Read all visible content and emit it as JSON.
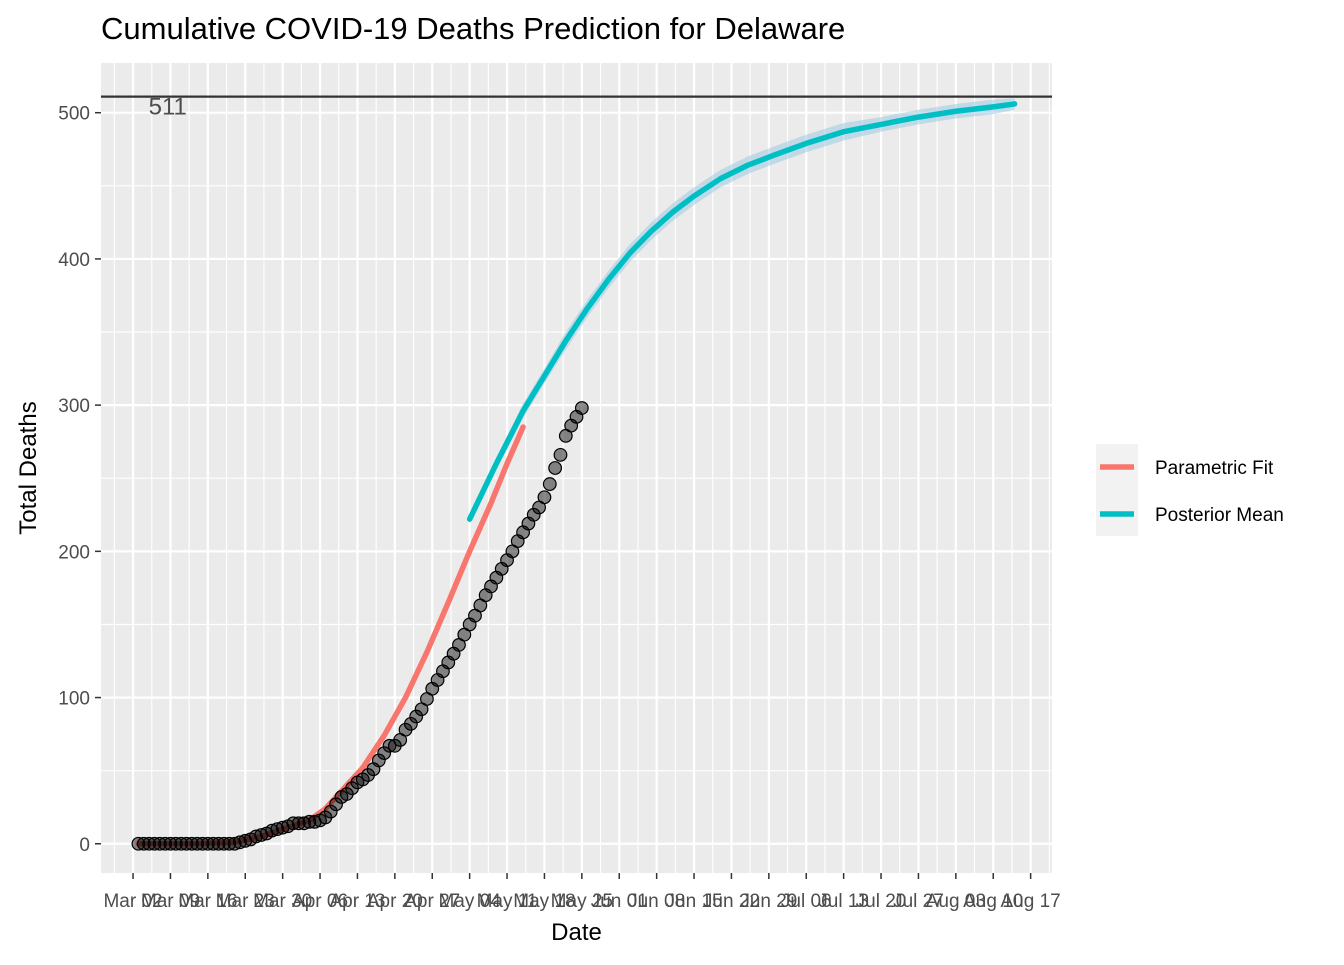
{
  "chart_data": {
    "type": "line",
    "title": "Cumulative COVID-19 Deaths Prediction for Delaware",
    "xlabel": "Date",
    "ylabel": "Total Deaths",
    "y_ticks": [
      0,
      100,
      200,
      300,
      400,
      500
    ],
    "ylim": [
      -20,
      534
    ],
    "xlim": [
      "2020-02-25",
      "2020-08-21"
    ],
    "x_ticks": [
      {
        "date": "2020-03-02",
        "label": "Mar 02"
      },
      {
        "date": "2020-03-09",
        "label": "Mar 09"
      },
      {
        "date": "2020-03-16",
        "label": "Mar 16"
      },
      {
        "date": "2020-03-23",
        "label": "Mar 23"
      },
      {
        "date": "2020-03-30",
        "label": "Mar 30"
      },
      {
        "date": "2020-04-06",
        "label": "Apr 06"
      },
      {
        "date": "2020-04-13",
        "label": "Apr 13"
      },
      {
        "date": "2020-04-20",
        "label": "Apr 20"
      },
      {
        "date": "2020-04-27",
        "label": "Apr 27"
      },
      {
        "date": "2020-05-04",
        "label": "May 04"
      },
      {
        "date": "2020-05-11",
        "label": "May 11"
      },
      {
        "date": "2020-05-18",
        "label": "May 18"
      },
      {
        "date": "2020-05-25",
        "label": "May 25"
      },
      {
        "date": "2020-06-01",
        "label": "Jun 01"
      },
      {
        "date": "2020-06-08",
        "label": "Jun 08"
      },
      {
        "date": "2020-06-15",
        "label": "Jun 15"
      },
      {
        "date": "2020-06-22",
        "label": "Jun 22"
      },
      {
        "date": "2020-06-29",
        "label": "Jun 29"
      },
      {
        "date": "2020-07-06",
        "label": "Jul 06"
      },
      {
        "date": "2020-07-13",
        "label": "Jul 13"
      },
      {
        "date": "2020-07-20",
        "label": "Jul 20"
      },
      {
        "date": "2020-07-27",
        "label": "Jul 27"
      },
      {
        "date": "2020-08-03",
        "label": "Aug 03"
      },
      {
        "date": "2020-08-10",
        "label": "Aug 10"
      },
      {
        "date": "2020-08-17",
        "label": "Aug 17"
      }
    ],
    "reference_line": {
      "value": 511,
      "label": "511",
      "color": "#333333"
    },
    "legend": {
      "position": "right",
      "entries": [
        {
          "name": "Parametric Fit",
          "color": "#F8766D"
        },
        {
          "name": "Posterior Mean",
          "color": "#00BFC4"
        }
      ]
    },
    "grid": true,
    "observed_points": {
      "start": "2020-03-03",
      "values": [
        0,
        0,
        0,
        0,
        0,
        0,
        0,
        0,
        0,
        0,
        0,
        0,
        0,
        0,
        0,
        0,
        0,
        0,
        0,
        1,
        2,
        3,
        5,
        6,
        7,
        9,
        10,
        11,
        12,
        14,
        14,
        14,
        15,
        15,
        16,
        18,
        22,
        27,
        32,
        34,
        38,
        42,
        44,
        47,
        51,
        57,
        62,
        67,
        67,
        71,
        78,
        82,
        87,
        92,
        99,
        106,
        112,
        118,
        124,
        130,
        136,
        143,
        150,
        156,
        163,
        170,
        176,
        182,
        188,
        194,
        200,
        207,
        213,
        219,
        225,
        230,
        237,
        246,
        257,
        266,
        279,
        286,
        292,
        298
      ]
    },
    "series": [
      {
        "name": "Parametric Fit",
        "color": "#F8766D",
        "dates": [
          "2020-03-03",
          "2020-03-14",
          "2020-03-21",
          "2020-03-26",
          "2020-03-31",
          "2020-04-04",
          "2020-04-07",
          "2020-04-10",
          "2020-04-14",
          "2020-04-18",
          "2020-04-22",
          "2020-04-26",
          "2020-04-30",
          "2020-05-04",
          "2020-05-08",
          "2020-05-11",
          "2020-05-14"
        ],
        "values": [
          0,
          0,
          1,
          5,
          11,
          16,
          24,
          36,
          52,
          74,
          100,
          131,
          165,
          200,
          233,
          260,
          285
        ]
      },
      {
        "name": "Posterior Mean",
        "color": "#00BFC4",
        "dates": [
          "2020-05-04",
          "2020-05-09",
          "2020-05-14",
          "2020-05-18",
          "2020-05-22",
          "2020-05-26",
          "2020-05-30",
          "2020-06-03",
          "2020-06-07",
          "2020-06-11",
          "2020-06-15",
          "2020-06-20",
          "2020-06-25",
          "2020-06-30",
          "2020-07-06",
          "2020-07-13",
          "2020-07-20",
          "2020-07-27",
          "2020-08-03",
          "2020-08-10",
          "2020-08-14"
        ],
        "values": [
          222,
          260,
          296,
          320,
          344,
          366,
          386,
          404,
          419,
          432,
          443,
          455,
          464,
          471,
          479,
          487,
          492,
          497,
          501,
          504,
          506
        ],
        "band_halfwidth": [
          3,
          4,
          5,
          5,
          6,
          6,
          6,
          6,
          6,
          6,
          6,
          6,
          6,
          6,
          6,
          6,
          5,
          5,
          5,
          5,
          4
        ]
      }
    ]
  }
}
